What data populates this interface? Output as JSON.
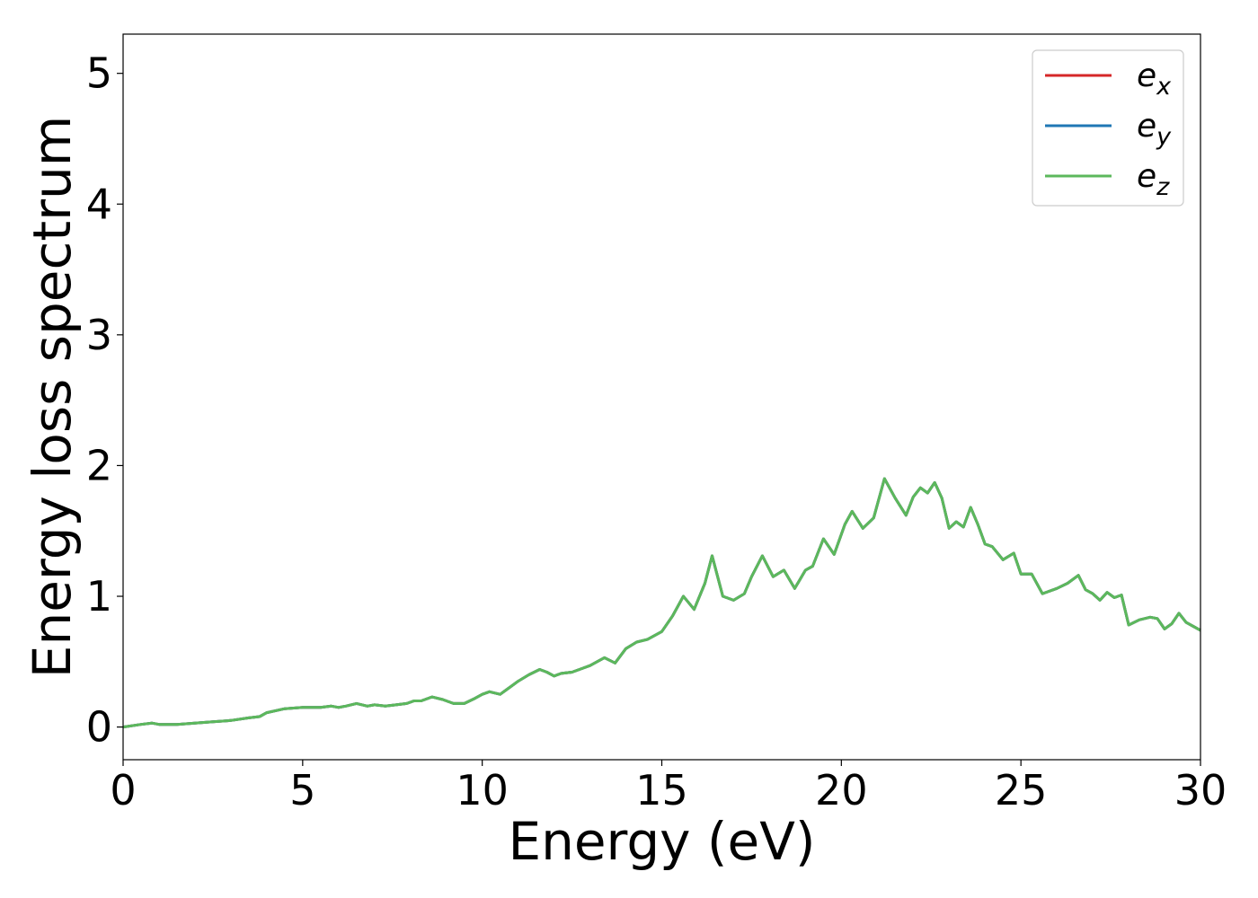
{
  "chart_data": {
    "type": "line",
    "title": "",
    "xlabel": "Energy (eV)",
    "ylabel": "Energy loss spectrum",
    "xlim": [
      0,
      30
    ],
    "ylim": [
      -0.25,
      5.3
    ],
    "xticks": [
      0,
      5,
      10,
      15,
      20,
      25,
      30
    ],
    "yticks": [
      0,
      1,
      2,
      3,
      4,
      5
    ],
    "grid": false,
    "legend_position": "top-right",
    "series": [
      {
        "name": "x",
        "color": "#d62728",
        "x": [
          0,
          0.5,
          0.8,
          1.0,
          1.5,
          2.0,
          2.5,
          3.0,
          3.5,
          3.8,
          4.0,
          4.5,
          5.0,
          5.5,
          5.8,
          6.0,
          6.2,
          6.5,
          6.8,
          7.0,
          7.3,
          7.6,
          7.9,
          8.1,
          8.3,
          8.6,
          8.9,
          9.2,
          9.5,
          9.8,
          10.0,
          10.2,
          10.5,
          10.7,
          11.0,
          11.3,
          11.6,
          11.8,
          12.0,
          12.2,
          12.5,
          12.8,
          13.0,
          13.2,
          13.4,
          13.7,
          14.0,
          14.3,
          14.6,
          15.0,
          15.3,
          15.6,
          15.9,
          16.2,
          16.4,
          16.7,
          17.0,
          17.3,
          17.5,
          17.8,
          18.1,
          18.4,
          18.7,
          19.0,
          19.2,
          19.5,
          19.8,
          20.1,
          20.3,
          20.6,
          20.9,
          21.2,
          21.5,
          21.8,
          22.0,
          22.2,
          22.4,
          22.6,
          22.8,
          23.0,
          23.2,
          23.4,
          23.6,
          23.8,
          24.0,
          24.2,
          24.5,
          24.8,
          25.0,
          25.3,
          25.6,
          26.0,
          26.3,
          26.6,
          26.8,
          27.0,
          27.2,
          27.4,
          27.6,
          27.8,
          28.0,
          28.3,
          28.6,
          28.8,
          29.0,
          29.2,
          29.4,
          29.6,
          29.8,
          30.0
        ],
        "y": [
          0.0,
          0.02,
          0.03,
          0.02,
          0.02,
          0.03,
          0.04,
          0.05,
          0.07,
          0.08,
          0.11,
          0.14,
          0.15,
          0.15,
          0.16,
          0.15,
          0.16,
          0.18,
          0.16,
          0.17,
          0.16,
          0.17,
          0.18,
          0.2,
          0.2,
          0.23,
          0.21,
          0.18,
          0.18,
          0.22,
          0.25,
          0.27,
          0.25,
          0.29,
          0.35,
          0.4,
          0.44,
          0.42,
          0.39,
          0.41,
          0.42,
          0.45,
          0.47,
          0.5,
          0.53,
          0.49,
          0.6,
          0.65,
          0.67,
          0.73,
          0.85,
          1.0,
          0.9,
          1.1,
          1.31,
          1.0,
          0.97,
          1.02,
          1.15,
          1.31,
          1.15,
          1.2,
          1.06,
          1.2,
          1.23,
          1.44,
          1.32,
          1.55,
          1.65,
          1.52,
          1.6,
          1.9,
          1.75,
          1.62,
          1.76,
          1.83,
          1.79,
          1.87,
          1.75,
          1.52,
          1.57,
          1.53,
          1.68,
          1.55,
          1.4,
          1.38,
          1.28,
          1.33,
          1.17,
          1.17,
          1.02,
          1.06,
          1.1,
          1.16,
          1.05,
          1.02,
          0.97,
          1.03,
          0.99,
          1.01,
          0.78,
          0.82,
          0.84,
          0.83,
          0.75,
          0.79,
          0.87,
          0.8,
          0.77,
          0.74
        ]
      },
      {
        "name": "y",
        "color": "#1f77b4",
        "x": [
          0,
          0.5,
          0.8,
          1.0,
          1.5,
          2.0,
          2.5,
          3.0,
          3.5,
          3.8,
          4.0,
          4.5,
          5.0,
          5.5,
          5.8,
          6.0,
          6.2,
          6.5,
          6.8,
          7.0,
          7.3,
          7.6,
          7.9,
          8.1,
          8.3,
          8.6,
          8.9,
          9.2,
          9.5,
          9.8,
          10.0,
          10.2,
          10.5,
          10.7,
          11.0,
          11.3,
          11.6,
          11.8,
          12.0,
          12.2,
          12.5,
          12.8,
          13.0,
          13.2,
          13.4,
          13.7,
          14.0,
          14.3,
          14.6,
          15.0,
          15.3,
          15.6,
          15.9,
          16.2,
          16.4,
          16.7,
          17.0,
          17.3,
          17.5,
          17.8,
          18.1,
          18.4,
          18.7,
          19.0,
          19.2,
          19.5,
          19.8,
          20.1,
          20.3,
          20.6,
          20.9,
          21.2,
          21.5,
          21.8,
          22.0,
          22.2,
          22.4,
          22.6,
          22.8,
          23.0,
          23.2,
          23.4,
          23.6,
          23.8,
          24.0,
          24.2,
          24.5,
          24.8,
          25.0,
          25.3,
          25.6,
          26.0,
          26.3,
          26.6,
          26.8,
          27.0,
          27.2,
          27.4,
          27.6,
          27.8,
          28.0,
          28.3,
          28.6,
          28.8,
          29.0,
          29.2,
          29.4,
          29.6,
          29.8,
          30.0
        ],
        "y": [
          0.0,
          0.02,
          0.03,
          0.02,
          0.02,
          0.03,
          0.04,
          0.05,
          0.07,
          0.08,
          0.11,
          0.14,
          0.15,
          0.15,
          0.16,
          0.15,
          0.16,
          0.18,
          0.16,
          0.17,
          0.16,
          0.17,
          0.18,
          0.2,
          0.2,
          0.23,
          0.21,
          0.18,
          0.18,
          0.22,
          0.25,
          0.27,
          0.25,
          0.29,
          0.35,
          0.4,
          0.44,
          0.42,
          0.39,
          0.41,
          0.42,
          0.45,
          0.47,
          0.5,
          0.53,
          0.49,
          0.6,
          0.65,
          0.67,
          0.73,
          0.85,
          1.0,
          0.9,
          1.1,
          1.31,
          1.0,
          0.97,
          1.02,
          1.15,
          1.31,
          1.15,
          1.2,
          1.06,
          1.2,
          1.23,
          1.44,
          1.32,
          1.55,
          1.65,
          1.52,
          1.6,
          1.9,
          1.75,
          1.62,
          1.76,
          1.83,
          1.79,
          1.87,
          1.75,
          1.52,
          1.57,
          1.53,
          1.68,
          1.55,
          1.4,
          1.38,
          1.28,
          1.33,
          1.17,
          1.17,
          1.02,
          1.06,
          1.1,
          1.16,
          1.05,
          1.02,
          0.97,
          1.03,
          0.99,
          1.01,
          0.78,
          0.82,
          0.84,
          0.83,
          0.75,
          0.79,
          0.87,
          0.8,
          0.77,
          0.74
        ]
      },
      {
        "name": "z",
        "color": "#5cb85c",
        "x": [
          0,
          0.5,
          0.8,
          1.0,
          1.5,
          2.0,
          2.5,
          3.0,
          3.5,
          3.8,
          4.0,
          4.5,
          5.0,
          5.5,
          5.8,
          6.0,
          6.2,
          6.5,
          6.8,
          7.0,
          7.3,
          7.6,
          7.9,
          8.1,
          8.3,
          8.6,
          8.9,
          9.2,
          9.5,
          9.8,
          10.0,
          10.2,
          10.5,
          10.7,
          11.0,
          11.3,
          11.6,
          11.8,
          12.0,
          12.2,
          12.5,
          12.8,
          13.0,
          13.2,
          13.4,
          13.7,
          14.0,
          14.3,
          14.6,
          15.0,
          15.3,
          15.6,
          15.9,
          16.2,
          16.4,
          16.7,
          17.0,
          17.3,
          17.5,
          17.8,
          18.1,
          18.4,
          18.7,
          19.0,
          19.2,
          19.5,
          19.8,
          20.1,
          20.3,
          20.6,
          20.9,
          21.2,
          21.5,
          21.8,
          22.0,
          22.2,
          22.4,
          22.6,
          22.8,
          23.0,
          23.2,
          23.4,
          23.6,
          23.8,
          24.0,
          24.2,
          24.5,
          24.8,
          25.0,
          25.3,
          25.6,
          26.0,
          26.3,
          26.6,
          26.8,
          27.0,
          27.2,
          27.4,
          27.6,
          27.8,
          28.0,
          28.3,
          28.6,
          28.8,
          29.0,
          29.2,
          29.4,
          29.6,
          29.8,
          30.0
        ],
        "y": [
          0.0,
          0.02,
          0.03,
          0.02,
          0.02,
          0.03,
          0.04,
          0.05,
          0.07,
          0.08,
          0.11,
          0.14,
          0.15,
          0.15,
          0.16,
          0.15,
          0.16,
          0.18,
          0.16,
          0.17,
          0.16,
          0.17,
          0.18,
          0.2,
          0.2,
          0.23,
          0.21,
          0.18,
          0.18,
          0.22,
          0.25,
          0.27,
          0.25,
          0.29,
          0.35,
          0.4,
          0.44,
          0.42,
          0.39,
          0.41,
          0.42,
          0.45,
          0.47,
          0.5,
          0.53,
          0.49,
          0.6,
          0.65,
          0.67,
          0.73,
          0.85,
          1.0,
          0.9,
          1.1,
          1.31,
          1.0,
          0.97,
          1.02,
          1.15,
          1.31,
          1.15,
          1.2,
          1.06,
          1.2,
          1.23,
          1.44,
          1.32,
          1.55,
          1.65,
          1.52,
          1.6,
          1.9,
          1.75,
          1.62,
          1.76,
          1.83,
          1.79,
          1.87,
          1.75,
          1.52,
          1.57,
          1.53,
          1.68,
          1.55,
          1.4,
          1.38,
          1.28,
          1.33,
          1.17,
          1.17,
          1.02,
          1.06,
          1.1,
          1.16,
          1.05,
          1.02,
          0.97,
          1.03,
          0.99,
          1.01,
          0.78,
          0.82,
          0.84,
          0.83,
          0.75,
          0.79,
          0.87,
          0.8,
          0.77,
          0.74
        ]
      }
    ],
    "legend_prefix": "e"
  }
}
